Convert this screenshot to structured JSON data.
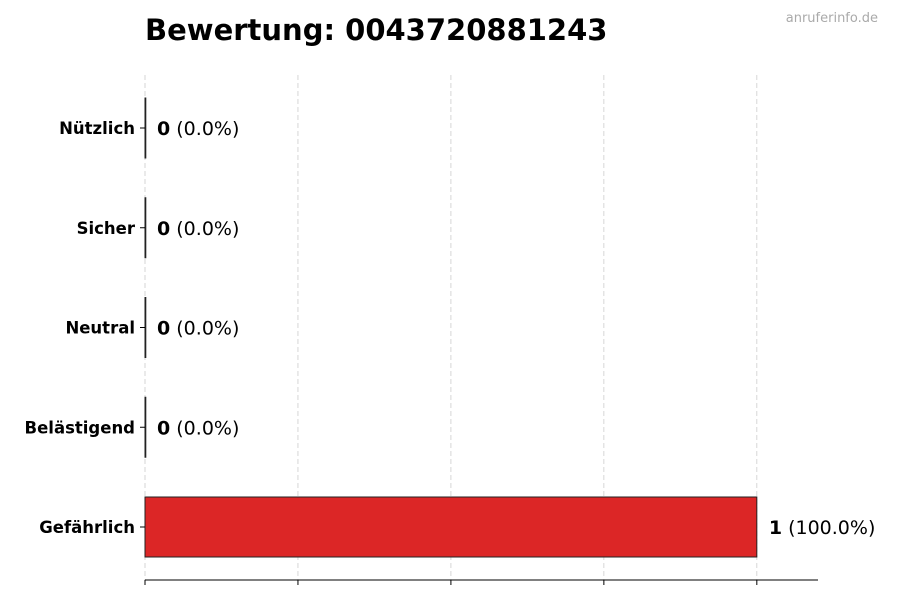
{
  "watermark": "anruferinfo.de",
  "chart_data": {
    "type": "bar",
    "orientation": "horizontal",
    "title": "Bewertung: 0043720881243",
    "xlabel": "",
    "ylabel": "",
    "categories": [
      "Nützlich",
      "Sicher",
      "Neutral",
      "Belästigend",
      "Gefährlich"
    ],
    "values": [
      0,
      0,
      0,
      0,
      1
    ],
    "value_labels": [
      "0",
      "0",
      "0",
      "0",
      "1"
    ],
    "percent_labels": [
      "(0.0%)",
      "(0.0%)",
      "(0.0%)",
      "(0.0%)",
      "(100.0%)"
    ],
    "xlim": [
      0,
      1.1
    ],
    "xticks": [
      0,
      0.25,
      0.5,
      0.75,
      1.0
    ],
    "grid": "vertical dashed",
    "colors": {
      "bar": "#dc2626",
      "edge": "#222222",
      "grid": "#cccccc"
    }
  }
}
